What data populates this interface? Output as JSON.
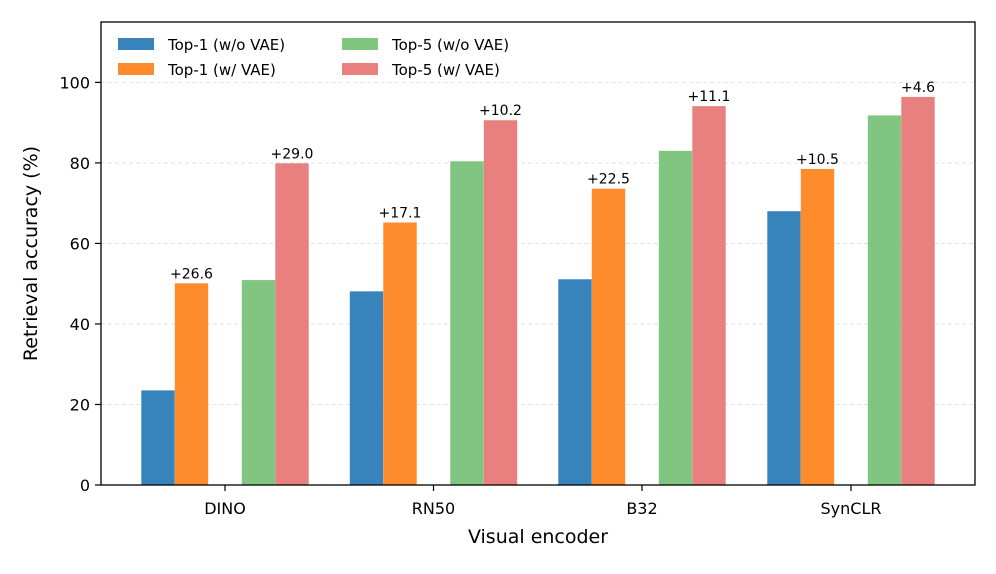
{
  "chart_data": {
    "type": "bar",
    "title": "",
    "xlabel": "Visual encoder",
    "ylabel": "Retrieval accuracy (%)",
    "ylim": [
      0,
      115
    ],
    "yticks": [
      0,
      20,
      40,
      60,
      80,
      100
    ],
    "grid": true,
    "legend_position": "top-left",
    "categories": [
      "DINO",
      "RN50",
      "B32",
      "SynCLR"
    ],
    "series": [
      {
        "name": "Top-1 (w/o VAE)",
        "color": "#3783bb",
        "values": [
          23.5,
          48.1,
          51.1,
          68.0
        ]
      },
      {
        "name": "Top-1 (w/ VAE)",
        "color": "#fe8c2c",
        "values": [
          50.1,
          65.2,
          73.6,
          78.5
        ]
      },
      {
        "name": "Top-5 (w/o VAE)",
        "color": "#80c680",
        "values": [
          50.9,
          80.4,
          83.0,
          91.8
        ]
      },
      {
        "name": "Top-5 (w/ VAE)",
        "color": "#e88080",
        "values": [
          79.9,
          90.6,
          94.1,
          96.4
        ]
      }
    ],
    "annotations": [
      {
        "series_index": 1,
        "labels": [
          "+26.6",
          "+17.1",
          "+22.5",
          "+10.5"
        ]
      },
      {
        "series_index": 3,
        "labels": [
          "+29.0",
          "+10.2",
          "+11.1",
          "+4.6"
        ]
      }
    ]
  }
}
